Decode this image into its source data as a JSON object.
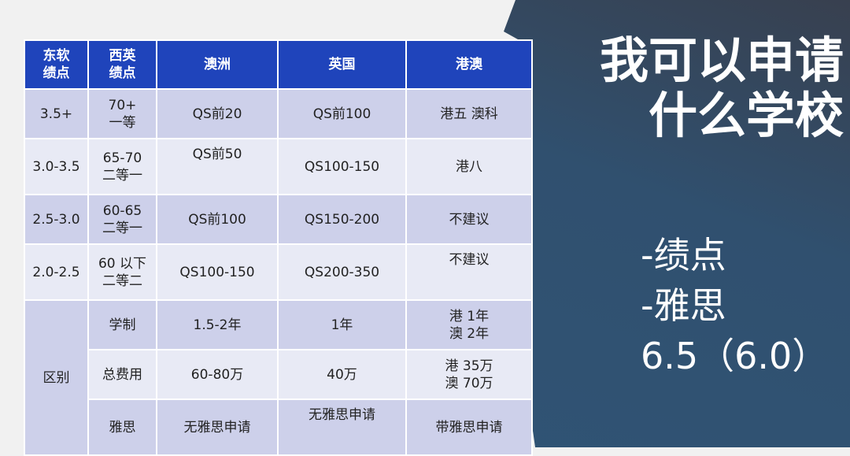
{
  "title": "我可以申请\n什么学校",
  "bullets": [
    "-绩点",
    "-雅思",
    "6.5（6.0）"
  ],
  "table": {
    "headers": [
      "东软\n绩点",
      "西英\n绩点",
      "澳洲",
      "英国",
      "港澳"
    ],
    "rows": [
      [
        "3.5+",
        "70+\n一等",
        "QS前20",
        "QS前100",
        "港五 澳科"
      ],
      [
        "3.0-3.5",
        "65-70\n二等一",
        "QS前50",
        "QS100-150",
        "港八"
      ],
      [
        "2.5-3.0",
        "60-65\n二等一",
        "QS前100",
        "QS150-200",
        "不建议"
      ],
      [
        "2.0-2.5",
        "60 以下\n二等二",
        "QS100-150",
        "QS200-350",
        "不建议"
      ]
    ],
    "diff_label": "区别",
    "diff_rows": [
      [
        "学制",
        "1.5-2年",
        "1年",
        "港 1年\n澳 2年"
      ],
      [
        "总费用",
        "60-80万",
        "40万",
        "港 35万\n澳 70万"
      ],
      [
        "雅思",
        "无雅思申请",
        "无雅思申请",
        "带雅思申请"
      ]
    ]
  },
  "colors": {
    "header": "#1f44bb",
    "row_dark": "#cdd0ea",
    "row_light": "#e8eaf5",
    "panel": "#2f5577"
  }
}
